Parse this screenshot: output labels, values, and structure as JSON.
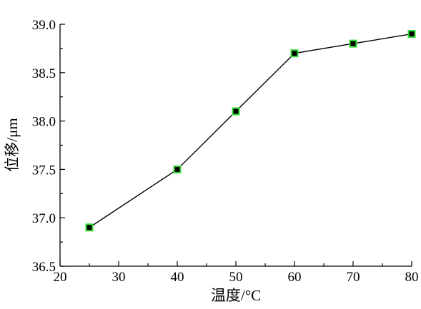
{
  "chart_data": {
    "type": "line",
    "xlabel": "温度/°C",
    "ylabel": "位移/μm",
    "xlim": [
      20,
      80
    ],
    "ylim": [
      36.5,
      39.0
    ],
    "x_ticks": [
      "20",
      "30",
      "40",
      "50",
      "60",
      "70",
      "80"
    ],
    "y_ticks": [
      "36.5",
      "37.0",
      "37.5",
      "38.0",
      "38.5",
      "39.0"
    ],
    "grid": false,
    "series": [
      {
        "x": [
          25,
          40,
          50,
          60,
          70,
          80
        ],
        "values": [
          36.9,
          37.5,
          38.1,
          38.7,
          38.8,
          38.9
        ],
        "line_color": "#000000",
        "marker": "square",
        "marker_fill": "#000000",
        "marker_edge": "#33dd33"
      }
    ]
  }
}
